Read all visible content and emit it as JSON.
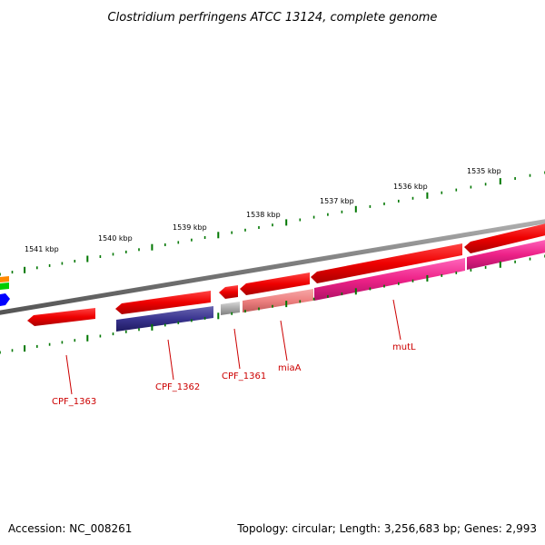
{
  "title": "Clostridium perfringens ATCC 13124, complete genome",
  "footer": {
    "accession": "Accession: NC_008261",
    "summary": "Topology: circular; Length: 3,256,683 bp; Genes: 2,993"
  },
  "ticks": [
    {
      "label": "1541 kbp"
    },
    {
      "label": "1540 kbp"
    },
    {
      "label": "1539 kbp"
    },
    {
      "label": "1538 kbp"
    },
    {
      "label": "1537 kbp"
    },
    {
      "label": "1536 kbp"
    },
    {
      "label": "1535 kbp"
    }
  ],
  "genes": [
    {
      "name": "CPF_1363",
      "strand": "reverse",
      "color": "#2e2a7e"
    },
    {
      "name": "CPF_1362",
      "strand": "reverse",
      "color": "#2e2a7e"
    },
    {
      "name": "CPF_1361",
      "strand": "reverse",
      "color": "#999999"
    },
    {
      "name": "miaA",
      "strand": "reverse",
      "color": "#ee8080"
    },
    {
      "name": "mutL",
      "strand": "reverse",
      "color": "#ee2288"
    }
  ],
  "colors": {
    "backbone": "#7a7a7a",
    "cds_forward": "#ee0000",
    "tick_marks": "#007700",
    "label": "#cc0000",
    "edge_orange": "#ff8800",
    "edge_green": "#00cc00",
    "edge_blue": "#0000ff"
  }
}
